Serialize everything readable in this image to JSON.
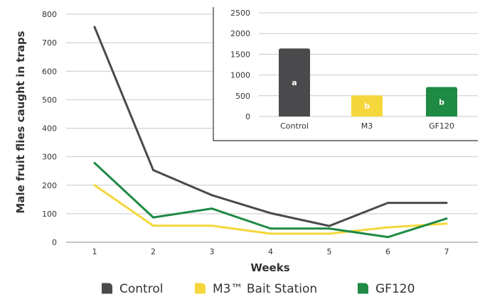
{
  "chart_data": [
    {
      "type": "line",
      "xlabel": "Weeks",
      "ylabel": "Male fruit flies caught in traps",
      "x": [
        1,
        2,
        3,
        4,
        5,
        6,
        7
      ],
      "ylim": [
        0,
        800
      ],
      "yticks": [
        0,
        100,
        200,
        300,
        400,
        500,
        600,
        700,
        800
      ],
      "grid": true,
      "legend_position": "bottom",
      "series": [
        {
          "name": "Control",
          "color": "#4a4a4c",
          "values": [
            755,
            253,
            165,
            102,
            57,
            138,
            138
          ]
        },
        {
          "name": "M3™ Bait Station",
          "color": "#f5d73b",
          "values": [
            200,
            58,
            58,
            30,
            30,
            52,
            65
          ]
        },
        {
          "name": "GF120",
          "color": "#1e8a44",
          "values": [
            278,
            87,
            118,
            48,
            48,
            18,
            83
          ]
        }
      ]
    },
    {
      "type": "bar",
      "categories": [
        "Control",
        "M3",
        "GF120"
      ],
      "values": [
        1640,
        510,
        710
      ],
      "labels": [
        "a",
        "b",
        "b"
      ],
      "colors": [
        "#4a4a4c",
        "#f5d73b",
        "#1e8a44"
      ],
      "ylim": [
        0,
        2500
      ],
      "yticks": [
        0,
        500,
        1000,
        1500,
        2000,
        2500
      ],
      "grid": true
    }
  ]
}
